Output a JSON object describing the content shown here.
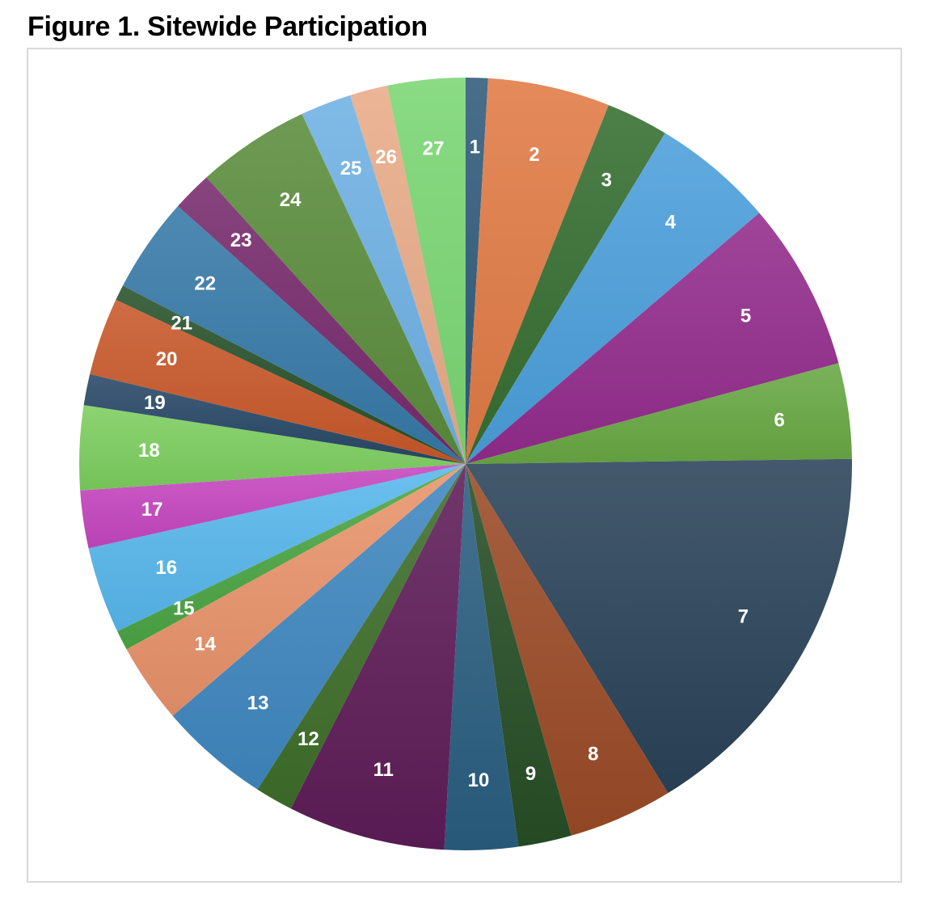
{
  "title": "Figure 1. Sitewide Participation",
  "chart_data": {
    "type": "pie",
    "title": "Figure 1. Sitewide Participation",
    "start_angle_deg": 0,
    "direction": "clockwise",
    "labels": [
      "1",
      "2",
      "3",
      "4",
      "5",
      "6",
      "7",
      "8",
      "9",
      "10",
      "11",
      "12",
      "13",
      "14",
      "15",
      "16",
      "17",
      "18",
      "19",
      "20",
      "21",
      "22",
      "23",
      "24",
      "25",
      "26",
      "27"
    ],
    "values": [
      1.0,
      5.5,
      2.8,
      5.5,
      7.6,
      4.3,
      17.7,
      4.7,
      2.4,
      3.3,
      7.1,
      1.7,
      5.0,
      3.6,
      0.9,
      3.9,
      2.6,
      3.8,
      1.4,
      3.5,
      0.7,
      4.3,
      1.8,
      5.1,
      2.3,
      1.7,
      3.5
    ],
    "colors": [
      "#2f5a7a",
      "#e07a45",
      "#356e30",
      "#4a9edb",
      "#932c8c",
      "#68a843",
      "#2a4258",
      "#9a4a26",
      "#264e25",
      "#2a5e80",
      "#5e1c57",
      "#3e6e2a",
      "#3f87bf",
      "#e8936a",
      "#4ca544",
      "#57b7ec",
      "#c546bf",
      "#7cce5f",
      "#274766",
      "#c9582a",
      "#27512a",
      "#3679a8",
      "#772a6c",
      "#5a8c3c",
      "#6fb1e4",
      "#e8ab88",
      "#7ad673"
    ]
  }
}
